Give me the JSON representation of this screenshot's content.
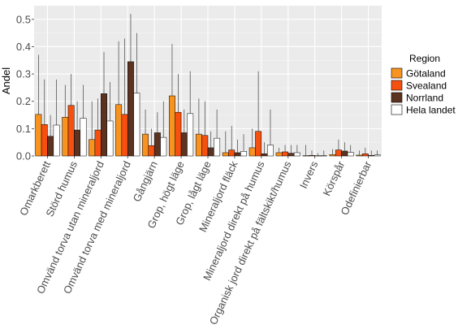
{
  "chart_data": {
    "type": "bar",
    "title": "",
    "xlabel": "",
    "ylabel": "Andel",
    "ylim": [
      0,
      0.55
    ],
    "yticks": [
      "0.0",
      "0.1",
      "0.2",
      "0.3",
      "0.4",
      "0.5"
    ],
    "ytick_values": [
      0,
      0.1,
      0.2,
      0.3,
      0.4,
      0.5
    ],
    "grid": true,
    "legend": {
      "title": "Region",
      "placement": "right"
    },
    "categories": [
      "Omarkberett",
      "Störd humus",
      "Omvänd torva utan mineraljord",
      "Omvänd torva med mineraljord",
      "Gångjärn",
      "Grop, högt läge",
      "Grop, lågt läge",
      "Mineraljord fläck",
      "Mineraljord direkt på humus",
      "Organisk jord direkt på fältskikt/humus",
      "Invers",
      "Körspår",
      "Odefinierbar"
    ],
    "series": [
      {
        "name": "Götaland",
        "color": "#f7931e",
        "values": [
          0.152,
          0.142,
          0.06,
          0.188,
          0.08,
          0.22,
          0.08,
          0.012,
          0.03,
          0.012,
          0.001,
          0.005,
          0.003
        ],
        "upper": [
          0.37,
          0.26,
          0.2,
          0.42,
          0.17,
          0.41,
          0.21,
          0.09,
          0.1,
          0.03,
          0.04,
          0.025,
          0.02
        ]
      },
      {
        "name": "Svealand",
        "color": "#f5500f",
        "values": [
          0.115,
          0.185,
          0.095,
          0.152,
          0.038,
          0.16,
          0.075,
          0.022,
          0.09,
          0.015,
          0.002,
          0.022,
          0.008
        ],
        "upper": [
          0.28,
          0.3,
          0.21,
          0.43,
          0.1,
          0.3,
          0.2,
          0.11,
          0.31,
          0.04,
          0.02,
          0.06,
          0.03
        ]
      },
      {
        "name": "Norrland",
        "color": "#5c3220",
        "values": [
          0.072,
          0.095,
          0.228,
          0.345,
          0.085,
          0.085,
          0.03,
          0.012,
          0.008,
          0.01,
          0.001,
          0.018,
          0.002
        ],
        "upper": [
          0.15,
          0.2,
          0.38,
          0.52,
          0.16,
          0.17,
          0.09,
          0.06,
          0.05,
          0.04,
          0.01,
          0.05,
          0.02
        ]
      },
      {
        "name": "Hela landet",
        "color": "#ffffff",
        "values": [
          0.113,
          0.138,
          0.128,
          0.23,
          0.068,
          0.155,
          0.065,
          0.017,
          0.04,
          0.012,
          0.001,
          0.013,
          0.004
        ],
        "upper": [
          0.28,
          0.26,
          0.27,
          0.45,
          0.2,
          0.31,
          0.17,
          0.08,
          0.17,
          0.04,
          0.02,
          0.04,
          0.02
        ]
      }
    ]
  }
}
